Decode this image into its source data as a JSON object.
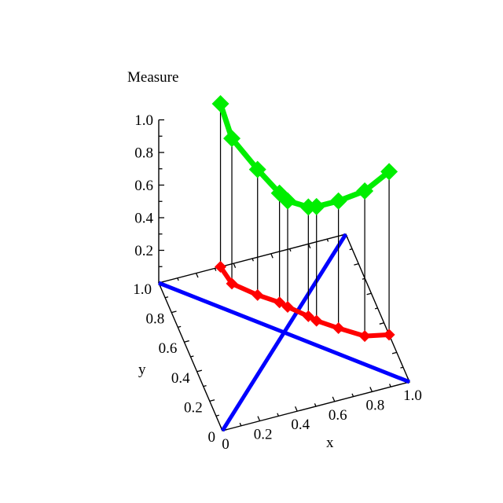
{
  "page": {
    "background": "#ffffff"
  },
  "chart_data": {
    "type": "line",
    "projection": "3d",
    "title": "Measure",
    "xlabel": "x",
    "ylabel": "y",
    "zlabel": "Measure",
    "xlim": [
      0,
      1
    ],
    "ylim": [
      0,
      1
    ],
    "zlim": [
      0,
      1
    ],
    "grid": false,
    "legend": null,
    "x_ticks": {
      "values": [
        0,
        0.2,
        0.4,
        0.6,
        0.8,
        1.0
      ],
      "labels": [
        "0",
        "0.2",
        "0.4",
        "0.6",
        "0.8",
        "1.0"
      ]
    },
    "y_ticks": {
      "values": [
        1.0,
        0.8,
        0.6,
        0.4,
        0.2,
        0
      ],
      "labels": [
        "1.0",
        "0.8",
        "0.6",
        "0.4",
        "0.2",
        "0"
      ]
    },
    "z_ticks": {
      "values": [
        0.2,
        0.4,
        0.6,
        0.8,
        1.0
      ],
      "labels": [
        "0.2",
        "0.4",
        "0.6",
        "0.8",
        "1.0"
      ]
    },
    "minor_tick_step": 0.1,
    "colors": {
      "measure_curve": "#00ee00",
      "base_path": "#ff0000",
      "diagonals": "#0000ff",
      "axes": "#000000",
      "droplines": "#000000"
    },
    "series": [
      {
        "name": "measure-curve",
        "role": "measure",
        "color": "#00ee00",
        "marker": "diamond",
        "droplines": true,
        "points": [
          [
            0.33,
            1.0,
            1.0
          ],
          [
            0.35,
            0.88,
            0.89
          ],
          [
            0.45,
            0.77,
            0.77
          ],
          [
            0.54,
            0.69,
            0.67
          ],
          [
            0.57,
            0.65,
            0.65
          ],
          [
            0.65,
            0.56,
            0.67
          ],
          [
            0.68,
            0.52,
            0.7
          ],
          [
            0.77,
            0.44,
            0.78
          ],
          [
            0.88,
            0.35,
            0.89
          ],
          [
            1.0,
            0.32,
            1.0
          ]
        ]
      },
      {
        "name": "base-path",
        "role": "base-path",
        "color": "#ff0000",
        "marker": "diamond",
        "droplines": false,
        "points": [
          [
            0.33,
            1.0,
            0
          ],
          [
            0.35,
            0.88,
            0
          ],
          [
            0.45,
            0.77,
            0
          ],
          [
            0.54,
            0.69,
            0
          ],
          [
            0.57,
            0.65,
            0
          ],
          [
            0.65,
            0.56,
            0
          ],
          [
            0.68,
            0.52,
            0
          ],
          [
            0.77,
            0.44,
            0
          ],
          [
            0.88,
            0.35,
            0
          ],
          [
            1.0,
            0.32,
            0
          ]
        ]
      },
      {
        "name": "diagonal-rising",
        "role": "diagonal",
        "color": "#0000ff",
        "marker": null,
        "droplines": false,
        "points": [
          [
            0,
            0,
            0
          ],
          [
            1,
            1,
            0
          ]
        ]
      },
      {
        "name": "diagonal-falling",
        "role": "diagonal",
        "color": "#0000ff",
        "marker": null,
        "droplines": false,
        "points": [
          [
            0,
            1,
            0
          ],
          [
            1,
            0,
            0
          ]
        ]
      }
    ]
  }
}
